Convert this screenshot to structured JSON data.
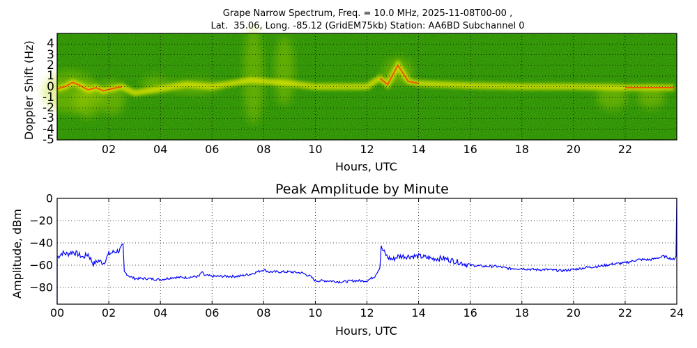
{
  "figure": {
    "title_line1": "Grape Narrow Spectrum, Freq. = 10.0 MHz, 2025-11-08T00-00 ,",
    "title_line2": "Lat.  35.06, Long. -85.12 (GridEM75kb) Station: AA6BD Subchannel 0"
  },
  "spectrogram": {
    "ylabel": "Doppler Shift (Hz)",
    "xlabel": "Hours, UTC",
    "yticks": [
      "4",
      "3",
      "2",
      "1",
      "0",
      "-1",
      "-2",
      "-3",
      "-4",
      "-5"
    ],
    "xticks": [
      "02",
      "04",
      "06",
      "08",
      "10",
      "12",
      "14",
      "16",
      "18",
      "20",
      "22"
    ]
  },
  "amplitude": {
    "title": "Peak Amplitude by Minute",
    "ylabel": "Amplitude, dBm",
    "xlabel": "Hours, UTC",
    "yticks": [
      "0",
      "−20",
      "−40",
      "−60",
      "−80"
    ],
    "xticks": [
      "00",
      "02",
      "04",
      "06",
      "08",
      "10",
      "12",
      "14",
      "16",
      "18",
      "20",
      "22",
      "24"
    ]
  },
  "colors": {
    "background_green": "#1f8a00",
    "trace_yellow": "#e8e800",
    "trace_red": "#ff3a00",
    "line_blue": "#0000ff"
  },
  "chart_data": [
    {
      "type": "heatmap",
      "title": "Grape Narrow Spectrum, Freq. = 10.0 MHz, 2025-11-08T00-00 , Lat.  35.06, Long. -85.12 (GridEM75kb) Station: AA6BD Subchannel 0",
      "xlabel": "Hours, UTC",
      "ylabel": "Doppler Shift (Hz)",
      "xlim": [
        0,
        24
      ],
      "ylim": [
        -5,
        5
      ],
      "x_tick_labels": [
        "02",
        "04",
        "06",
        "08",
        "10",
        "12",
        "14",
        "16",
        "18",
        "20",
        "22"
      ],
      "y_tick_labels": [
        4,
        3,
        2,
        1,
        0,
        -1,
        -2,
        -3,
        -4,
        -5
      ],
      "grid": true,
      "colormap": "green-yellow-red",
      "dominant_trace_hz": [
        [
          0.0,
          -0.2
        ],
        [
          0.3,
          0.0
        ],
        [
          0.6,
          0.4
        ],
        [
          0.9,
          0.1
        ],
        [
          1.2,
          -0.3
        ],
        [
          1.5,
          -0.1
        ],
        [
          1.8,
          -0.4
        ],
        [
          2.1,
          -0.2
        ],
        [
          2.5,
          0.0
        ],
        [
          3.0,
          -0.6
        ],
        [
          4.0,
          -0.2
        ],
        [
          5.0,
          0.2
        ],
        [
          6.0,
          0.0
        ],
        [
          7.5,
          0.6
        ],
        [
          9.0,
          0.3
        ],
        [
          10.0,
          0.0
        ],
        [
          12.0,
          0.0
        ],
        [
          12.5,
          0.8
        ],
        [
          12.8,
          0.2
        ],
        [
          13.2,
          2.0
        ],
        [
          13.6,
          0.5
        ],
        [
          14.0,
          0.3
        ],
        [
          16.0,
          0.1
        ],
        [
          18.0,
          0.0
        ],
        [
          20.0,
          0.0
        ],
        [
          22.0,
          -0.1
        ],
        [
          23.9,
          -0.1
        ]
      ]
    },
    {
      "type": "line",
      "title": "Peak Amplitude by Minute",
      "xlabel": "Hours, UTC",
      "ylabel": "Amplitude, dBm",
      "xlim": [
        0,
        24
      ],
      "ylim": [
        -95,
        0
      ],
      "grid": true,
      "x_tick_labels": [
        "00",
        "02",
        "04",
        "06",
        "08",
        "10",
        "12",
        "14",
        "16",
        "18",
        "20",
        "22",
        "24"
      ],
      "y_tick_labels": [
        0,
        -20,
        -40,
        -60,
        -80
      ],
      "series": [
        {
          "name": "Peak Amplitude",
          "color": "#0000ff",
          "x": [
            0.0,
            0.2,
            0.4,
            0.6,
            0.8,
            1.0,
            1.2,
            1.4,
            1.6,
            1.8,
            2.0,
            2.2,
            2.4,
            2.5,
            2.55,
            2.6,
            2.8,
            3.0,
            3.2,
            3.5,
            4.0,
            4.5,
            5.0,
            5.5,
            5.6,
            5.7,
            6.0,
            6.5,
            7.0,
            7.5,
            8.0,
            8.2,
            8.5,
            9.0,
            9.5,
            9.8,
            10.0,
            10.5,
            11.0,
            11.5,
            12.0,
            12.3,
            12.5,
            12.55,
            12.6,
            12.8,
            13.0,
            13.2,
            13.5,
            14.0,
            14.5,
            15.0,
            15.5,
            16.0,
            16.5,
            17.0,
            17.5,
            18.0,
            18.5,
            19.0,
            19.5,
            20.0,
            20.5,
            21.0,
            21.5,
            22.0,
            22.5,
            23.0,
            23.5,
            23.9,
            23.97,
            24.0
          ],
          "y": [
            -53,
            -49,
            -50,
            -48,
            -50,
            -53,
            -50,
            -59,
            -56,
            -58,
            -50,
            -48,
            -47,
            -44,
            -43,
            -66,
            -70,
            -72,
            -72,
            -72,
            -73,
            -71,
            -71,
            -70,
            -66,
            -69,
            -70,
            -70,
            -70,
            -68,
            -64,
            -66,
            -66,
            -66,
            -67,
            -70,
            -74,
            -74,
            -75,
            -74,
            -74,
            -70,
            -62,
            -44,
            -46,
            -53,
            -55,
            -52,
            -52,
            -52,
            -54,
            -54,
            -57,
            -60,
            -61,
            -61,
            -63,
            -63,
            -64,
            -64,
            -65,
            -64,
            -62,
            -61,
            -59,
            -58,
            -55,
            -55,
            -52,
            -55,
            -52,
            0
          ]
        }
      ]
    }
  ]
}
